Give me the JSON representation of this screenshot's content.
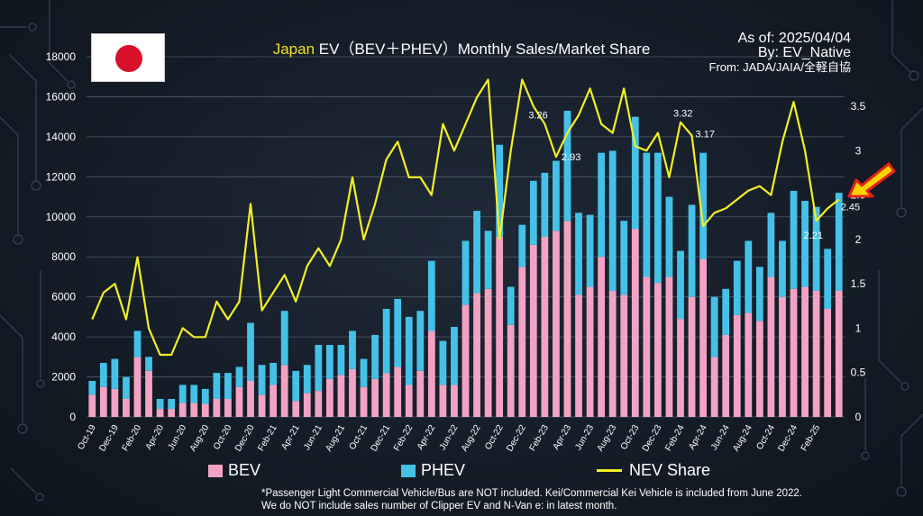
{
  "title": {
    "highlight": "Japan",
    "rest": " EV（BEV＋PHEV）Monthly Sales/Market Share"
  },
  "info": {
    "as_of": "As of: 2025/04/04",
    "by": "By: EV_Native",
    "from": "From: JADA/JAIA/全軽自協"
  },
  "legend": {
    "bev": "BEV",
    "phev": "PHEV",
    "share": "NEV Share"
  },
  "notes": {
    "line1": "*Passenger Light Commercial Vehicle/Bus are NOT included. Kei/Commercial Kei Vehicle is included from June 2022.",
    "line2": "We do NOT include sales number of Clipper EV and N-Van e: in latest month."
  },
  "colors": {
    "bev": "#f2a3c3",
    "phev": "#45c1e8",
    "share": "#f3ee26",
    "arrow": "#ffd400",
    "arrow_outline": "#e2231a",
    "flag_sun": "#d8102a"
  },
  "chart_data": {
    "type": "bar",
    "subtype": "stacked bar with line on secondary axis",
    "x_tick_labels": [
      "Oct-19",
      "Dec-19",
      "Feb-20",
      "Apr-20",
      "Jun-20",
      "Aug-20",
      "Oct-20",
      "Dec-20",
      "Feb-21",
      "Apr-21",
      "Jun-21",
      "Aug-21",
      "Oct-21",
      "Dec-21",
      "Feb-22",
      "Apr-22",
      "Jun-22",
      "Aug-22",
      "Oct-22",
      "Dec-22",
      "Feb-23",
      "Apr-23",
      "Jun-23",
      "Aug-23",
      "Oct-23",
      "Dec-23",
      "Feb-24",
      "Apr-24",
      "Jun-24",
      "Aug-24",
      "Oct-24",
      "Dec-24",
      "Feb-25"
    ],
    "y_left": {
      "min": 0,
      "max": 18000,
      "ticks": [
        0,
        2000,
        4000,
        6000,
        8000,
        10000,
        12000,
        14000,
        16000,
        18000
      ]
    },
    "y_right": {
      "min": 0,
      "max": 3.5,
      "ticks": [
        "0",
        "0.5",
        "1",
        "1.5",
        "2",
        "2.5",
        "3",
        "3.5"
      ]
    },
    "grid": true,
    "legend_position": "bottom",
    "series": [
      {
        "name": "BEV",
        "type": "bar",
        "values": [
          1100,
          1500,
          1400,
          900,
          3000,
          2300,
          400,
          400,
          700,
          700,
          650,
          900,
          900,
          1500,
          1800,
          1100,
          1600,
          2600,
          800,
          1200,
          1300,
          1900,
          2100,
          2400,
          1500,
          1900,
          2200,
          2500,
          1600,
          2300,
          4300,
          1600,
          1600,
          5600,
          6200,
          6400,
          9000,
          4600,
          7500,
          8600,
          9000,
          9300,
          9800,
          6100,
          6500,
          8000,
          6300,
          6100,
          9400,
          7000,
          6700,
          7000,
          4900,
          6000,
          7900,
          3000,
          4100,
          5100,
          5200,
          4800,
          7000,
          6000,
          6400,
          6500,
          6300,
          5400,
          6300
        ]
      },
      {
        "name": "PHEV",
        "type": "bar",
        "values": [
          700,
          1200,
          1500,
          1100,
          1300,
          700,
          500,
          500,
          900,
          900,
          750,
          1300,
          1300,
          1000,
          2900,
          1500,
          1100,
          2700,
          1500,
          1400,
          2300,
          1700,
          1500,
          1900,
          1400,
          2200,
          3200,
          3400,
          3400,
          3000,
          3500,
          2200,
          2900,
          3200,
          4100,
          2900,
          4600,
          1900,
          2100,
          3200,
          3200,
          3500,
          5500,
          4100,
          3600,
          5200,
          7000,
          3700,
          5600,
          6200,
          6500,
          4000,
          3400,
          4600,
          5300,
          3000,
          2300,
          2700,
          3600,
          2700,
          3200,
          2800,
          4900,
          4300,
          4200,
          3000,
          4900
        ]
      },
      {
        "name": "NEV Share",
        "type": "line",
        "axis": "right",
        "values": [
          1.1,
          1.4,
          1.5,
          1.1,
          1.8,
          1.0,
          0.7,
          0.7,
          1.0,
          0.9,
          0.9,
          1.3,
          1.1,
          1.3,
          2.4,
          1.2,
          1.4,
          1.6,
          1.3,
          1.7,
          1.9,
          1.7,
          2.0,
          2.7,
          2.0,
          2.4,
          2.9,
          3.1,
          2.7,
          2.7,
          2.5,
          3.3,
          3.0,
          3.3,
          3.6,
          3.8,
          2.0,
          3.0,
          3.8,
          3.5,
          3.3,
          2.93,
          3.2,
          3.4,
          3.7,
          3.3,
          3.2,
          3.7,
          3.05,
          3.0,
          3.2,
          2.7,
          3.32,
          3.17,
          2.15,
          2.3,
          2.35,
          2.45,
          2.55,
          2.6,
          2.5,
          3.1,
          3.55,
          3.0,
          2.21,
          2.35,
          2.45
        ]
      }
    ],
    "annotations": [
      {
        "index": 40,
        "text": "3.26"
      },
      {
        "index": 41,
        "text": "2.93"
      },
      {
        "index": 52,
        "text": "3.32"
      },
      {
        "index": 53,
        "text": "3.17"
      },
      {
        "index": 64,
        "text": "2.21"
      },
      {
        "index": 66,
        "text": "2.45"
      }
    ]
  }
}
